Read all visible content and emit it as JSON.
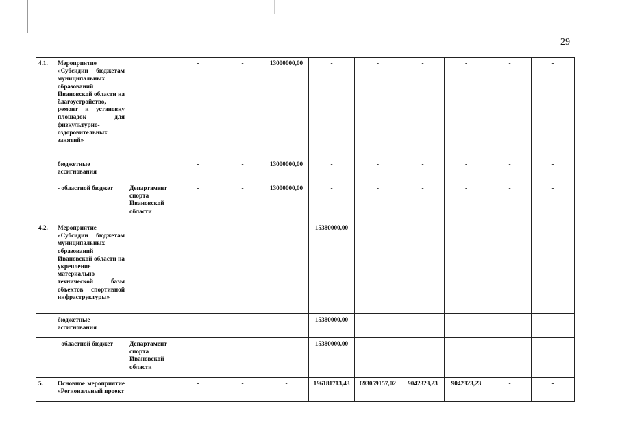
{
  "page_number": "29",
  "rows": [
    {
      "num": "4.1.",
      "name": "Мероприятие «Субсидии бюджетам муниципальных образований Ивановской области на благоустройство, ремонт и установку площадок для физкультурно-оздоровительных занятий»",
      "responsible": "",
      "values": [
        "-",
        "-",
        "13000000,00",
        "-",
        "-",
        "-",
        "-",
        "-",
        "-"
      ]
    },
    {
      "num": "",
      "name": "бюджетные ассигнования",
      "responsible": "",
      "values": [
        "-",
        "-",
        "13000000,00",
        "-",
        "-",
        "-",
        "-",
        "-",
        "-"
      ]
    },
    {
      "num": "",
      "name": "- областной бюджет",
      "responsible": "Департамент спорта Ивановской области",
      "values": [
        "-",
        "-",
        "13000000,00",
        "-",
        "-",
        "-",
        "-",
        "-",
        "-"
      ]
    },
    {
      "num": "4.2.",
      "name": "Мероприятие «Субсидии бюджетам муниципальных образований Ивановской области на укрепление материально-технической базы объектов спортивной инфраструктуры»",
      "responsible": "",
      "values": [
        "-",
        "-",
        "-",
        "15380000,00",
        "-",
        "-",
        "-",
        "-",
        "-"
      ]
    },
    {
      "num": "",
      "name": "бюджетные ассигнования",
      "responsible": "",
      "values": [
        "-",
        "-",
        "-",
        "15380000,00",
        "-",
        "-",
        "-",
        "-",
        "-"
      ]
    },
    {
      "num": "",
      "name": "- областной бюджет",
      "responsible": "Департамент спорта Ивановской области",
      "values": [
        "-",
        "-",
        "-",
        "15380000,00",
        "-",
        "-",
        "-",
        "-",
        "-"
      ]
    },
    {
      "num": "5.",
      "name": "Основное мероприятие «Региональный проект",
      "responsible": "",
      "values": [
        "-",
        "-",
        "-",
        "196181713,43",
        "693059157,02",
        "9042323,23",
        "9042323,23",
        "-",
        "-"
      ]
    }
  ]
}
